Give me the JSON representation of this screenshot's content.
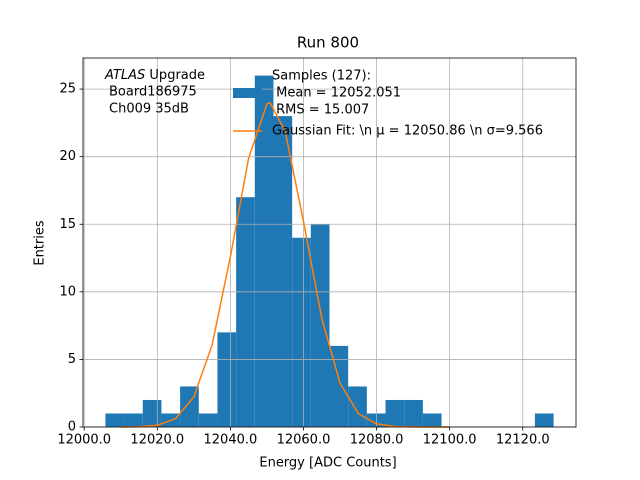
{
  "chart_data": {
    "type": "histogram",
    "title": "Run 800",
    "xlabel": "Energy [ADC Counts]",
    "ylabel": "Entries",
    "annotation": [
      "ATLAS",
      "Upgrade",
      "Board186975",
      "Ch009 35dB"
    ],
    "bins": [
      12005.8,
      12010.91,
      12016.02,
      12021.13,
      12026.24,
      12031.35,
      12036.46,
      12041.57,
      12046.68,
      12051.79,
      12056.9,
      12062.01,
      12067.12,
      12072.23,
      12077.34,
      12082.45,
      12087.56,
      12092.67,
      12097.78,
      12102.89,
      12108.0,
      12113.11,
      12118.22,
      12123.33,
      12128.44
    ],
    "series": [
      {
        "name": [
          "Samples (127):",
          " Mean = 12052.051",
          " RMS = 15.007"
        ],
        "color": "#1f77b4",
        "values": [
          1,
          1,
          2,
          1,
          3,
          1,
          7,
          17,
          26,
          23,
          14,
          15,
          6,
          3,
          1,
          2,
          2,
          1,
          0,
          0,
          0,
          0,
          0,
          1
        ]
      },
      {
        "name": "Gaussian Fit: \\n μ = 12050.86 \\n σ=9.566",
        "color": "#ff7f0e",
        "type": "line",
        "x": [
          12010,
          12015,
          12020,
          12025,
          12030,
          12035,
          12040,
          12045,
          12050,
          12050.86,
          12055,
          12060,
          12065,
          12070,
          12075,
          12080,
          12085,
          12090,
          12095,
          12100
        ],
        "values": [
          0.003,
          0.02,
          0.13,
          0.62,
          2.23,
          6.07,
          12.6,
          19.9,
          23.9,
          24.0,
          21.86,
          15.2,
          8.05,
          3.24,
          0.99,
          0.23,
          0.04,
          0.01,
          0,
          0
        ]
      }
    ],
    "xlim": [
      11999.67,
      12134.57
    ],
    "ylim": [
      0,
      27.3
    ],
    "xticks": [
      {
        "value": 12000,
        "label": "12000.0"
      },
      {
        "value": 12020,
        "label": "12020.0"
      },
      {
        "value": 12040,
        "label": "12040.0"
      },
      {
        "value": 12060,
        "label": "12060.0"
      },
      {
        "value": 12080,
        "label": "12080.0"
      },
      {
        "value": 12100,
        "label": "12100.0"
      },
      {
        "value": 12120,
        "label": "12120.0"
      }
    ],
    "yticks": [
      0,
      5,
      10,
      15,
      20,
      25
    ],
    "grid": true,
    "grid_color": "#b0b0b0"
  }
}
